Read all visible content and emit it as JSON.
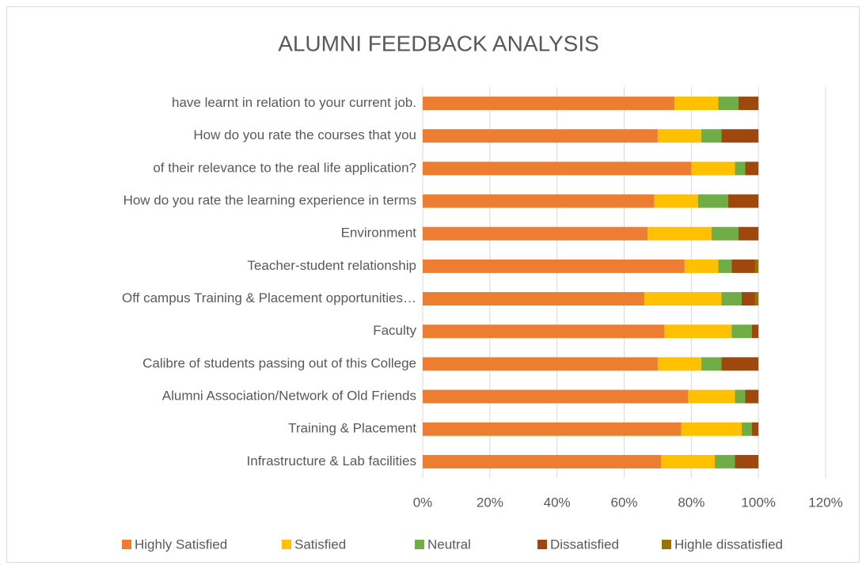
{
  "chart_data": {
    "type": "stacked-bar-horizontal",
    "title": "ALUMNI FEEDBACK ANALYSIS",
    "categories": [
      "have learnt in relation to your current job.",
      "How do you rate the courses that you",
      "of their relevance to the real life application?",
      "How do you rate the learning experience in terms",
      "Environment",
      "Teacher-student relationship",
      "Off campus Training & Placement opportunities…",
      "Faculty",
      "Calibre of students passing out of this College",
      "Alumni Association/Network of Old Friends",
      "Training & Placement",
      "Infrastructure & Lab facilities"
    ],
    "series": [
      {
        "name": "Highly Satisfied",
        "color": "#ed7d31",
        "values": [
          75,
          70,
          80,
          69,
          67,
          78,
          66,
          72,
          70,
          79,
          77,
          71
        ]
      },
      {
        "name": "Satisfied",
        "color": "#ffc000",
        "values": [
          13,
          13,
          13,
          13,
          19,
          10,
          23,
          20,
          13,
          14,
          18,
          16
        ]
      },
      {
        "name": "Neutral",
        "color": "#70ad47",
        "values": [
          6,
          6,
          3,
          9,
          8,
          4,
          6,
          6,
          6,
          3,
          3,
          6
        ]
      },
      {
        "name": "Dissatisfied",
        "color": "#9e480e",
        "values": [
          6,
          11,
          4,
          9,
          6,
          7,
          4,
          2,
          11,
          4,
          2,
          7
        ]
      },
      {
        "name": "Highle dissatisfied",
        "color": "#997300",
        "values": [
          0,
          0,
          0,
          0,
          0,
          1,
          1,
          0,
          0,
          0,
          0,
          0
        ]
      }
    ],
    "xlim": [
      0,
      120
    ],
    "xticks": [
      {
        "value": 0,
        "label": "0%"
      },
      {
        "value": 20,
        "label": "20%"
      },
      {
        "value": 40,
        "label": "40%"
      },
      {
        "value": 60,
        "label": "60%"
      },
      {
        "value": 80,
        "label": "80%"
      },
      {
        "value": 100,
        "label": "100%"
      },
      {
        "value": 120,
        "label": "120%"
      }
    ],
    "grid": true,
    "legend": "bottom"
  }
}
